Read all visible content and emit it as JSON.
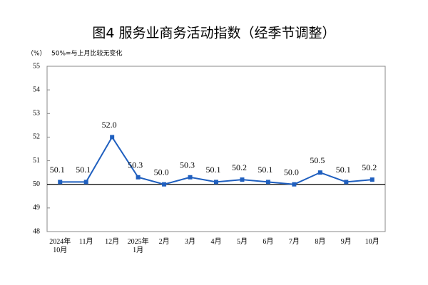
{
  "chart_data": {
    "type": "line",
    "title": "图4  服务业商务活动指数（经季节调整）",
    "unit_label": "（%）",
    "note": "50%=与上月比较无变化",
    "categories": [
      "2024年\n10月",
      "11月",
      "12月",
      "2025年\n1月",
      "2月",
      "3月",
      "4月",
      "5月",
      "6月",
      "7月",
      "8月",
      "9月",
      "10月"
    ],
    "series": [
      {
        "color": "#1f5fbf",
        "values": [
          50.1,
          50.1,
          52.0,
          50.3,
          50.0,
          50.3,
          50.1,
          50.2,
          50.1,
          50.0,
          50.5,
          50.1,
          50.2
        ],
        "value_labels": [
          "50.1",
          "50.1",
          "52.0",
          "50.3",
          "50.0",
          "50.3",
          "50.1",
          "50.2",
          "50.1",
          "50.0",
          "50.5",
          "50.1",
          "50.2"
        ]
      }
    ],
    "ylim": [
      48,
      55
    ],
    "yticks": [
      48,
      49,
      50,
      51,
      52,
      53,
      54,
      55
    ],
    "reference_line": 50
  }
}
